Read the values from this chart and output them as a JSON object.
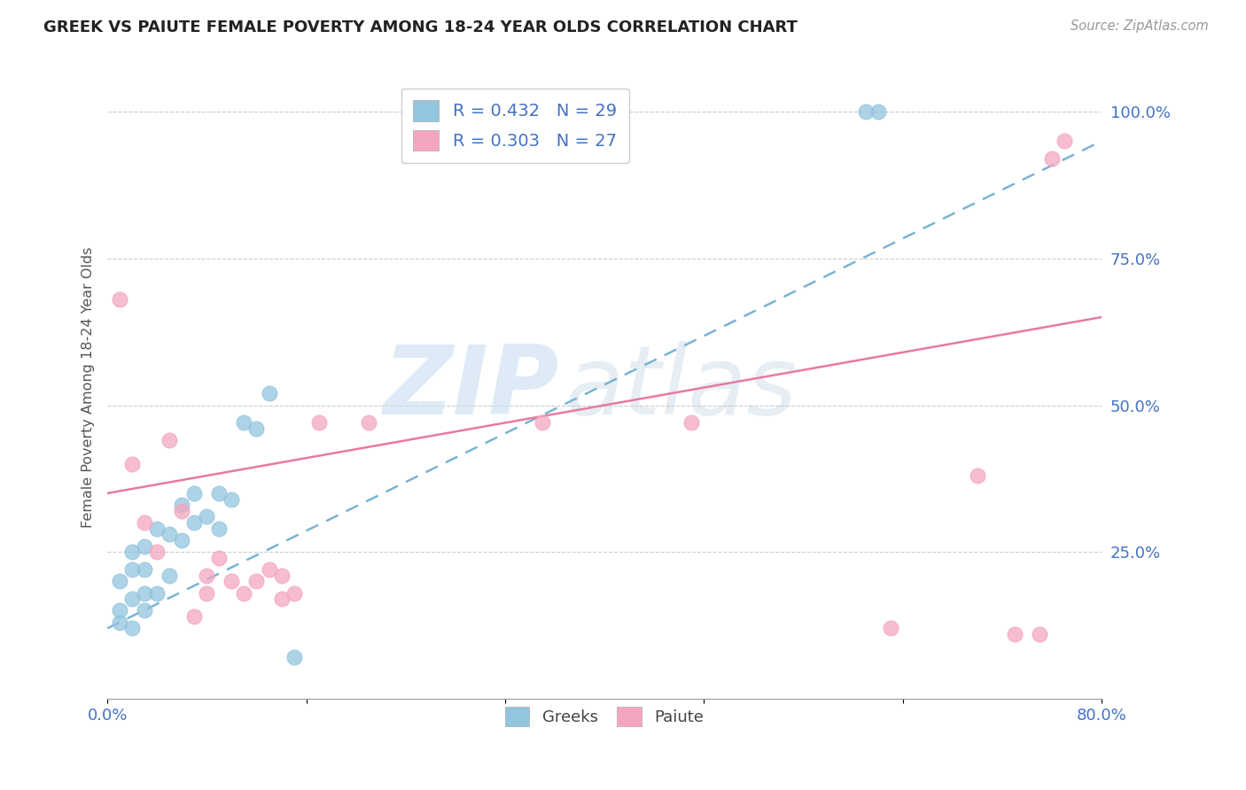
{
  "title": "GREEK VS PAIUTE FEMALE POVERTY AMONG 18-24 YEAR OLDS CORRELATION CHART",
  "source": "Source: ZipAtlas.com",
  "xlabel": "",
  "ylabel": "Female Poverty Among 18-24 Year Olds",
  "xlim": [
    0.0,
    0.8
  ],
  "ylim": [
    0.0,
    1.06
  ],
  "xtick_positions": [
    0.0,
    0.16,
    0.32,
    0.48,
    0.64,
    0.8
  ],
  "xtick_labels": [
    "0.0%",
    "",
    "",
    "",
    "",
    "80.0%"
  ],
  "ytick_positions": [
    0.0,
    0.25,
    0.5,
    0.75,
    1.0
  ],
  "ytick_labels": [
    "",
    "25.0%",
    "50.0%",
    "75.0%",
    "100.0%"
  ],
  "greek_color": "#92c5de",
  "paiute_color": "#f4a6c0",
  "greek_line_color": "#7ab3d4",
  "paiute_line_color": "#e879a0",
  "greek_R": 0.432,
  "greek_N": 29,
  "paiute_R": 0.303,
  "paiute_N": 27,
  "background_color": "#ffffff",
  "greek_scatter_x": [
    0.01,
    0.01,
    0.01,
    0.02,
    0.02,
    0.02,
    0.02,
    0.03,
    0.03,
    0.03,
    0.03,
    0.04,
    0.04,
    0.05,
    0.05,
    0.06,
    0.06,
    0.07,
    0.07,
    0.08,
    0.09,
    0.09,
    0.1,
    0.11,
    0.12,
    0.13,
    0.15,
    0.61,
    0.62
  ],
  "greek_scatter_y": [
    0.13,
    0.15,
    0.2,
    0.12,
    0.17,
    0.22,
    0.25,
    0.15,
    0.18,
    0.22,
    0.26,
    0.18,
    0.29,
    0.21,
    0.28,
    0.27,
    0.33,
    0.3,
    0.35,
    0.31,
    0.29,
    0.35,
    0.34,
    0.47,
    0.46,
    0.52,
    0.07,
    1.0,
    1.0
  ],
  "paiute_scatter_x": [
    0.01,
    0.02,
    0.03,
    0.04,
    0.05,
    0.06,
    0.07,
    0.08,
    0.08,
    0.09,
    0.1,
    0.11,
    0.12,
    0.13,
    0.14,
    0.14,
    0.15,
    0.17,
    0.21,
    0.35,
    0.47,
    0.63,
    0.7,
    0.73,
    0.75,
    0.76,
    0.77
  ],
  "paiute_scatter_y": [
    0.68,
    0.4,
    0.3,
    0.25,
    0.44,
    0.32,
    0.14,
    0.18,
    0.21,
    0.24,
    0.2,
    0.18,
    0.2,
    0.22,
    0.21,
    0.17,
    0.18,
    0.47,
    0.47,
    0.47,
    0.47,
    0.12,
    0.38,
    0.11,
    0.11,
    0.92,
    0.95
  ],
  "greek_trend_x": [
    0.0,
    0.8
  ],
  "greek_trend_y": [
    0.12,
    0.95
  ],
  "paiute_trend_x": [
    0.0,
    0.8
  ],
  "paiute_trend_y": [
    0.35,
    0.65
  ]
}
